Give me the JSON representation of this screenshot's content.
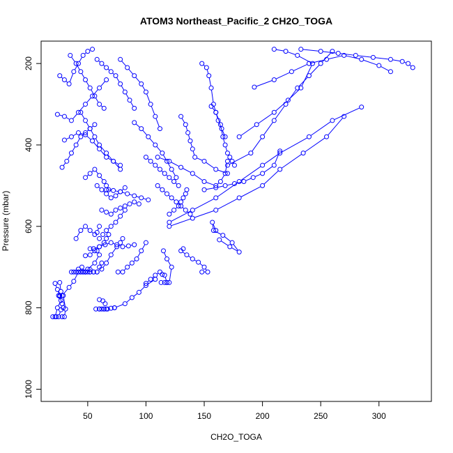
{
  "chart_data": {
    "type": "scatter",
    "title": "ATOM3 Northeast_Pacific_2 CH2O_TOGA",
    "xlabel": "CH2O_TOGA",
    "ylabel": "Pressure (mbar)",
    "xlim": [
      10,
      345
    ],
    "ylim": [
      1030,
      145
    ],
    "y_reversed": true,
    "x_ticks": [
      50,
      100,
      150,
      200,
      250,
      300
    ],
    "y_ticks": [
      200,
      400,
      600,
      800,
      1000
    ],
    "grid": false,
    "legend": "none",
    "colors": {
      "series": "#0000ff",
      "axis": "#000000"
    },
    "series": [
      {
        "x": [
          20,
          22,
          24,
          27,
          26,
          24,
          22
        ],
        "y": [
          822,
          822,
          800,
          782,
          770,
          755,
          740
        ]
      },
      {
        "x": [
          23,
          25,
          27,
          29,
          28,
          26,
          25
        ],
        "y": [
          822,
          822,
          805,
          800,
          790,
          772,
          770
        ]
      },
      {
        "x": [
          28,
          30,
          31,
          29,
          27,
          26
        ],
        "y": [
          822,
          822,
          803,
          770,
          760,
          738
        ]
      },
      {
        "x": [
          28,
          34,
          38,
          42,
          46,
          48,
          52
        ],
        "y": [
          770,
          750,
          735,
          712,
          712,
          712,
          712
        ]
      },
      {
        "x": [
          60,
          62,
          64,
          66,
          65,
          63,
          60
        ],
        "y": [
          803,
          803,
          803,
          803,
          790,
          783,
          780
        ]
      },
      {
        "x": [
          57,
          60,
          64,
          67,
          70,
          73
        ],
        "y": [
          803,
          803,
          803,
          803,
          801,
          800
        ]
      },
      {
        "x": [
          73,
          82,
          88,
          94,
          100,
          108
        ],
        "y": [
          800,
          790,
          775,
          762,
          745,
          730
        ]
      },
      {
        "x": [
          36,
          40,
          42,
          44,
          46,
          48,
          50
        ],
        "y": [
          712,
          712,
          712,
          712,
          712,
          712,
          712
        ]
      },
      {
        "x": [
          38,
          42,
          45,
          48,
          52,
          55,
          58
        ],
        "y": [
          712,
          705,
          700,
          712,
          712,
          712,
          712
        ]
      },
      {
        "x": [
          44,
          50,
          56,
          60,
          58,
          55,
          52
        ],
        "y": [
          712,
          705,
          690,
          670,
          660,
          655,
          655
        ]
      },
      {
        "x": [
          48,
          52,
          55,
          58,
          60,
          62
        ],
        "y": [
          712,
          706,
          712,
          712,
          700,
          690
        ]
      },
      {
        "x": [
          62,
          66,
          70,
          75,
          78,
          80
        ],
        "y": [
          705,
          690,
          670,
          650,
          640,
          630
        ]
      },
      {
        "x": [
          76,
          80,
          84,
          88,
          92,
          96,
          100
        ],
        "y": [
          712,
          712,
          700,
          690,
          680,
          660,
          640
        ]
      },
      {
        "x": [
          100,
          104,
          108,
          112,
          114,
          116,
          118
        ],
        "y": [
          740,
          730,
          720,
          712,
          718,
          720,
          738
        ]
      },
      {
        "x": [
          113,
          116,
          118,
          120,
          122,
          118,
          115
        ],
        "y": [
          738,
          738,
          738,
          738,
          700,
          680,
          660
        ]
      },
      {
        "x": [
          148,
          153,
          150,
          145,
          140,
          135,
          130,
          132
        ],
        "y": [
          712,
          712,
          700,
          688,
          680,
          670,
          660,
          655
        ]
      },
      {
        "x": [
          163,
          172,
          180,
          174,
          166,
          158,
          157,
          160
        ],
        "y": [
          633,
          650,
          663,
          640,
          622,
          610,
          590,
          610
        ]
      },
      {
        "x": [
          40,
          44,
          48,
          52,
          56,
          58,
          60
        ],
        "y": [
          630,
          610,
          600,
          610,
          620,
          615,
          600
        ]
      },
      {
        "x": [
          48,
          52,
          56,
          60,
          64,
          66,
          68
        ],
        "y": [
          672,
          670,
          660,
          650,
          640,
          630,
          620
        ]
      },
      {
        "x": [
          55,
          60,
          65,
          70,
          75,
          80,
          85,
          90
        ],
        "y": [
          655,
          650,
          645,
          640,
          645,
          650,
          648,
          645
        ]
      },
      {
        "x": [
          60,
          63,
          66,
          70,
          74,
          78,
          82
        ],
        "y": [
          630,
          620,
          610,
          600,
          590,
          575,
          560
        ]
      },
      {
        "x": [
          62,
          66,
          70,
          74,
          78,
          82,
          86,
          90,
          94
        ],
        "y": [
          560,
          565,
          570,
          560,
          555,
          550,
          545,
          540,
          545
        ]
      },
      {
        "x": [
          66,
          72,
          78,
          84,
          90,
          96,
          102
        ],
        "y": [
          510,
          512,
          515,
          520,
          525,
          530,
          535
        ]
      },
      {
        "x": [
          58,
          62,
          66,
          70,
          74,
          78,
          82
        ],
        "y": [
          500,
          510,
          520,
          530,
          525,
          515,
          505
        ]
      },
      {
        "x": [
          48,
          52,
          56,
          60,
          64,
          66,
          68
        ],
        "y": [
          480,
          470,
          460,
          475,
          490,
          500,
          510
        ]
      },
      {
        "x": [
          28,
          32,
          36,
          40,
          44,
          48,
          52,
          56
        ],
        "y": [
          455,
          440,
          420,
          400,
          380,
          370,
          360,
          350
        ]
      },
      {
        "x": [
          30,
          36,
          42,
          48,
          54,
          60,
          66,
          72,
          78
        ],
        "y": [
          388,
          380,
          370,
          375,
          390,
          410,
          430,
          440,
          450
        ]
      },
      {
        "x": [
          24,
          30,
          36,
          42,
          48,
          54,
          60,
          66
        ],
        "y": [
          325,
          330,
          340,
          320,
          300,
          280,
          260,
          240
        ]
      },
      {
        "x": [
          26,
          30,
          34,
          38,
          42,
          46,
          50,
          54
        ],
        "y": [
          230,
          240,
          250,
          220,
          200,
          180,
          170,
          165
        ]
      },
      {
        "x": [
          35,
          40,
          44,
          48,
          52,
          56,
          60,
          64
        ],
        "y": [
          180,
          200,
          220,
          240,
          260,
          280,
          300,
          310
        ]
      },
      {
        "x": [
          44,
          48,
          52,
          56,
          60,
          66,
          72,
          78
        ],
        "y": [
          320,
          340,
          360,
          380,
          400,
          420,
          440,
          460
        ]
      },
      {
        "x": [
          58,
          62,
          66,
          70,
          74,
          78,
          82,
          86,
          90
        ],
        "y": [
          190,
          200,
          210,
          220,
          230,
          250,
          270,
          290,
          310
        ]
      },
      {
        "x": [
          78,
          84,
          90,
          96,
          100,
          104,
          108,
          112
        ],
        "y": [
          190,
          210,
          230,
          250,
          270,
          300,
          330,
          360
        ]
      },
      {
        "x": [
          90,
          96,
          102,
          108,
          114,
          118,
          122,
          126
        ],
        "y": [
          345,
          360,
          380,
          400,
          420,
          440,
          460,
          480
        ]
      },
      {
        "x": [
          100,
          104,
          108,
          112,
          116,
          120,
          124,
          128
        ],
        "y": [
          430,
          440,
          450,
          460,
          470,
          480,
          490,
          500
        ]
      },
      {
        "x": [
          110,
          114,
          118,
          122,
          126,
          130,
          134,
          138
        ],
        "y": [
          500,
          510,
          520,
          530,
          540,
          550,
          560,
          570
        ]
      },
      {
        "x": [
          120,
          124,
          128,
          130,
          132,
          134,
          135
        ],
        "y": [
          570,
          560,
          550,
          540,
          530,
          520,
          510
        ]
      },
      {
        "x": [
          130,
          134,
          136,
          138,
          140,
          142,
          150,
          160,
          170
        ],
        "y": [
          330,
          350,
          370,
          390,
          410,
          430,
          440,
          460,
          470
        ]
      },
      {
        "x": [
          148,
          152,
          154,
          156,
          158,
          160,
          162,
          165,
          168
        ],
        "y": [
          200,
          210,
          230,
          260,
          300,
          320,
          340,
          360,
          380
        ]
      },
      {
        "x": [
          156,
          160,
          164,
          166,
          168,
          170,
          172,
          174,
          176
        ],
        "y": [
          305,
          320,
          350,
          380,
          400,
          420,
          430,
          440,
          450
        ]
      },
      {
        "x": [
          110,
          120,
          130,
          140,
          150,
          160,
          164,
          168,
          170
        ],
        "y": [
          430,
          440,
          455,
          470,
          490,
          500,
          490,
          470,
          440
        ]
      },
      {
        "x": [
          150,
          160,
          168,
          176,
          184,
          192,
          200,
          210,
          215
        ],
        "y": [
          510,
          505,
          500,
          495,
          490,
          480,
          470,
          450,
          415
        ]
      },
      {
        "x": [
          120,
          140,
          160,
          180,
          200,
          215,
          240,
          260,
          285
        ],
        "y": [
          590,
          560,
          530,
          490,
          450,
          420,
          380,
          340,
          307
        ]
      },
      {
        "x": [
          120,
          140,
          160,
          180,
          200,
          215,
          235,
          255,
          270
        ],
        "y": [
          600,
          580,
          560,
          530,
          500,
          460,
          420,
          380,
          330
        ]
      },
      {
        "x": [
          170,
          190,
          200,
          210,
          220,
          230,
          240,
          250,
          260
        ],
        "y": [
          450,
          420,
          380,
          340,
          300,
          260,
          230,
          200,
          170
        ]
      },
      {
        "x": [
          193,
          210,
          225,
          240,
          255,
          270,
          285,
          300,
          310
        ],
        "y": [
          258,
          240,
          220,
          200,
          190,
          180,
          190,
          205,
          220
        ]
      },
      {
        "x": [
          233,
          250,
          265,
          280,
          295,
          310,
          320,
          325,
          329
        ],
        "y": [
          165,
          170,
          175,
          180,
          185,
          190,
          195,
          200,
          210
        ]
      },
      {
        "x": [
          180,
          195,
          210,
          222,
          233,
          243,
          230,
          220,
          210
        ],
        "y": [
          380,
          350,
          320,
          290,
          260,
          200,
          180,
          170,
          165
        ]
      }
    ]
  }
}
